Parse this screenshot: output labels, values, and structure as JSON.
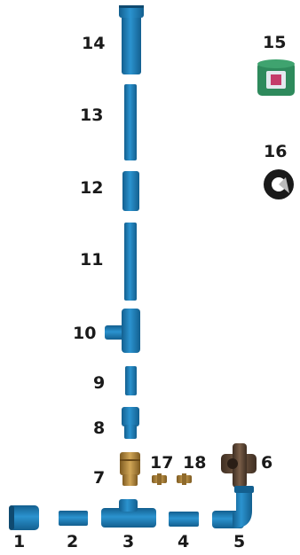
{
  "parts": [
    {
      "id": "1",
      "label": "1",
      "kind": "socket-coupling"
    },
    {
      "id": "2",
      "label": "2",
      "kind": "short-pipe"
    },
    {
      "id": "3",
      "label": "3",
      "kind": "tee-horizontal"
    },
    {
      "id": "4",
      "label": "4",
      "kind": "short-pipe"
    },
    {
      "id": "5",
      "label": "5",
      "kind": "elbow"
    },
    {
      "id": "6",
      "label": "6",
      "kind": "iron-tee"
    },
    {
      "id": "7",
      "label": "7",
      "kind": "brass-valve"
    },
    {
      "id": "8",
      "label": "8",
      "kind": "adapter"
    },
    {
      "id": "9",
      "label": "9",
      "kind": "short-pipe"
    },
    {
      "id": "10",
      "label": "10",
      "kind": "tee-side-outlet"
    },
    {
      "id": "11",
      "label": "11",
      "kind": "long-pipe"
    },
    {
      "id": "12",
      "label": "12",
      "kind": "coupling"
    },
    {
      "id": "13",
      "label": "13",
      "kind": "long-pipe"
    },
    {
      "id": "14",
      "label": "14",
      "kind": "top-pipe-with-cap"
    },
    {
      "id": "15",
      "label": "15",
      "kind": "glue-tin"
    },
    {
      "id": "16",
      "label": "16",
      "kind": "tape-roll"
    },
    {
      "id": "17",
      "label": "17",
      "kind": "brass-nipple"
    },
    {
      "id": "18",
      "label": "18",
      "kind": "brass-nipple"
    }
  ],
  "colors": {
    "pipe": "#1f86c2",
    "pipe_dark": "#135f8f",
    "pipe_light": "#4aa9de",
    "brass": "#b58a3c",
    "iron": "#5a4434",
    "tin": "#2e8a5c",
    "label": "#1a1a1a"
  }
}
